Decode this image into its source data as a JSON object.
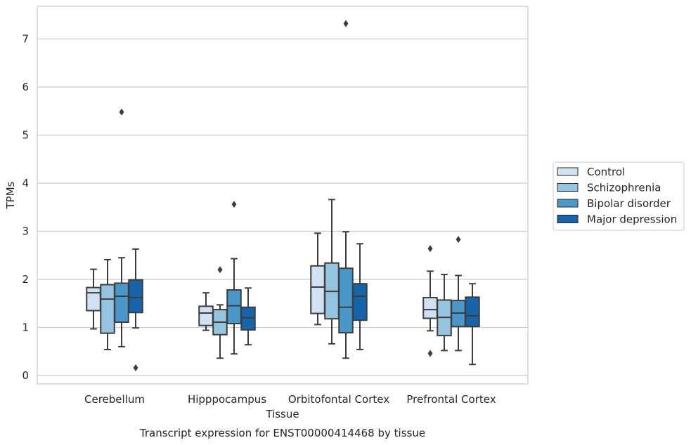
{
  "chart_data": {
    "type": "box",
    "title": "",
    "caption": "Transcript expression for ENST00000414468 by tissue",
    "xlabel": "Tissue",
    "ylabel": "TPMs",
    "ylim": [
      -0.2,
      7.7
    ],
    "yticks": [
      0,
      1,
      2,
      3,
      4,
      5,
      6,
      7
    ],
    "grid": true,
    "legend_position": "right",
    "categories": [
      "Cerebellum",
      "Hipppocampus",
      "Orbitofontal Cortex",
      "Prefrontal Cortex"
    ],
    "series": [
      {
        "name": "Control",
        "color": "#d0e1f2",
        "boxes": [
          {
            "min": 0.97,
            "q1": 1.35,
            "median": 1.72,
            "q3": 1.83,
            "max": 2.21,
            "outliers": []
          },
          {
            "min": 0.94,
            "q1": 1.04,
            "median": 1.3,
            "q3": 1.44,
            "max": 1.72,
            "outliers": []
          },
          {
            "min": 1.06,
            "q1": 1.29,
            "median": 1.84,
            "q3": 2.28,
            "max": 2.96,
            "outliers": []
          },
          {
            "min": 0.93,
            "q1": 1.19,
            "median": 1.37,
            "q3": 1.62,
            "max": 2.17,
            "outliers": [
              0.46,
              2.64
            ]
          }
        ]
      },
      {
        "name": "Schizophrenia",
        "color": "#94c4df",
        "boxes": [
          {
            "min": 0.54,
            "q1": 0.88,
            "median": 1.59,
            "q3": 1.89,
            "max": 2.41,
            "outliers": []
          },
          {
            "min": 0.36,
            "q1": 0.85,
            "median": 1.11,
            "q3": 1.37,
            "max": 1.47,
            "outliers": [
              2.2
            ]
          },
          {
            "min": 0.66,
            "q1": 1.18,
            "median": 1.75,
            "q3": 2.34,
            "max": 3.66,
            "outliers": []
          },
          {
            "min": 0.52,
            "q1": 0.83,
            "median": 1.21,
            "q3": 1.57,
            "max": 2.1,
            "outliers": []
          }
        ]
      },
      {
        "name": "Bipolar disorder",
        "color": "#4a98c9",
        "boxes": [
          {
            "min": 0.6,
            "q1": 1.11,
            "median": 1.65,
            "q3": 1.92,
            "max": 2.45,
            "outliers": [
              5.48
            ]
          },
          {
            "min": 0.45,
            "q1": 1.08,
            "median": 1.45,
            "q3": 1.78,
            "max": 2.43,
            "outliers": [
              3.56
            ]
          },
          {
            "min": 0.36,
            "q1": 0.89,
            "median": 1.42,
            "q3": 2.23,
            "max": 2.99,
            "outliers": [
              7.32
            ]
          },
          {
            "min": 0.52,
            "q1": 1.02,
            "median": 1.3,
            "q3": 1.56,
            "max": 2.08,
            "outliers": [
              2.83
            ]
          }
        ]
      },
      {
        "name": "Major depression",
        "color": "#1764ab",
        "boxes": [
          {
            "min": 0.99,
            "q1": 1.31,
            "median": 1.62,
            "q3": 1.99,
            "max": 2.63,
            "outliers": [
              0.16
            ]
          },
          {
            "min": 0.64,
            "q1": 0.95,
            "median": 1.2,
            "q3": 1.42,
            "max": 1.82,
            "outliers": []
          },
          {
            "min": 0.54,
            "q1": 1.15,
            "median": 1.65,
            "q3": 1.91,
            "max": 2.74,
            "outliers": []
          },
          {
            "min": 0.23,
            "q1": 1.02,
            "median": 1.24,
            "q3": 1.63,
            "max": 1.91,
            "outliers": []
          }
        ]
      }
    ]
  }
}
